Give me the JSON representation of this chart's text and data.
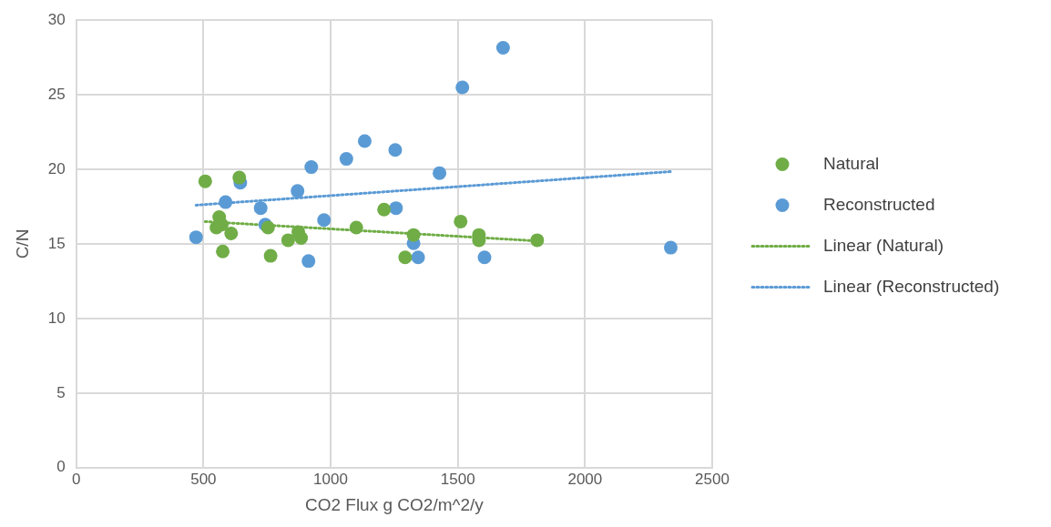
{
  "chart_data": {
    "type": "scatter",
    "xlabel": "CO2 Flux g CO2/m^2/y",
    "ylabel": "C/N",
    "xlim": [
      0,
      2500
    ],
    "xticks": [
      0,
      500,
      1000,
      1500,
      2000,
      2500
    ],
    "ylim": [
      0,
      30
    ],
    "yticks": [
      0,
      5,
      10,
      15,
      20,
      25,
      30
    ],
    "grid": true,
    "legend": "right",
    "marker": "circle",
    "series": [
      {
        "name": "Natural",
        "color": "#70ad47",
        "type": "scatter",
        "x": [
          507,
          641,
          562,
          572,
          551,
          609,
          576,
          754,
          764,
          833,
          873,
          884,
          1101,
          1210,
          1326,
          1293,
          1511,
          1583,
          1583,
          1812
        ],
        "values": [
          19.2,
          19.45,
          16.8,
          16.3,
          16.1,
          15.7,
          14.5,
          16.1,
          14.2,
          15.25,
          15.8,
          15.4,
          16.1,
          17.3,
          15.6,
          14.1,
          16.5,
          15.6,
          15.25,
          15.25
        ]
      },
      {
        "name": "Reconstructed",
        "color": "#5b9bd5",
        "type": "scatter",
        "x": [
          471,
          587,
          645,
          725,
          743,
          870,
          913,
          924,
          974,
          1062,
          1134,
          1254,
          1257,
          1326,
          1344,
          1428,
          1518,
          1605,
          1678,
          2337
        ],
        "values": [
          15.45,
          17.8,
          19.1,
          17.4,
          16.3,
          18.55,
          13.85,
          20.15,
          16.6,
          20.7,
          21.9,
          21.3,
          17.4,
          15.05,
          14.1,
          19.75,
          25.5,
          14.1,
          28.15,
          14.75
        ]
      },
      {
        "name": "Linear (Natural)",
        "color": "#70ad47",
        "type": "line",
        "line_style": "dotted",
        "marker": "none",
        "x": [
          507,
          1812
        ],
        "values": [
          16.5,
          15.2
        ]
      },
      {
        "name": "Linear (Reconstructed)",
        "color": "#5b9bd5",
        "type": "line",
        "line_style": "dotted",
        "marker": "none",
        "x": [
          471,
          2337
        ],
        "values": [
          17.6,
          19.85
        ]
      }
    ]
  }
}
